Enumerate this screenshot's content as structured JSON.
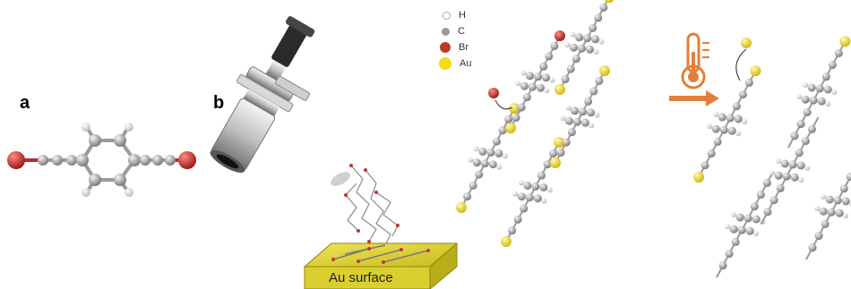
{
  "panels": {
    "a": "a",
    "b": "b"
  },
  "legend": [
    {
      "symbol": "H",
      "color": "#ffffff",
      "size": 7
    },
    {
      "symbol": "C",
      "color": "#999999",
      "size": 9
    },
    {
      "symbol": "Br",
      "color": "#c0392b",
      "size": 12
    },
    {
      "symbol": "Au",
      "color": "#f1dc1a",
      "size": 14
    }
  ],
  "surface_label": "Au surface",
  "colors": {
    "arrow": "#e67e3a",
    "bromine": "#c0392b",
    "gold": "#f1dc1a",
    "carbon": "#a9a9a9",
    "surface": "#d6cd2c"
  },
  "icons": [
    "thermometer-icon",
    "evaporator-icon",
    "molecule-icon"
  ]
}
